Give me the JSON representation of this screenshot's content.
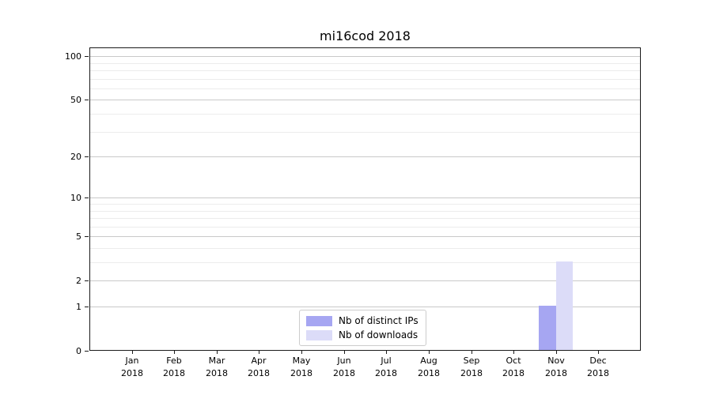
{
  "title": "mi16cod 2018",
  "chart_data": {
    "type": "bar",
    "title": "mi16cod 2018",
    "categories": [
      "Jan",
      "Feb",
      "Mar",
      "Apr",
      "May",
      "Jun",
      "Jul",
      "Aug",
      "Sep",
      "Oct",
      "Nov",
      "Dec"
    ],
    "category_year": "2018",
    "series": [
      {
        "name": "Nb of distinct IPs",
        "color": "#a6a6f2",
        "values": [
          0,
          0,
          0,
          0,
          0,
          0,
          0,
          0,
          0,
          0,
          1,
          0
        ]
      },
      {
        "name": "Nb of downloads",
        "color": "#dcdcf8",
        "values": [
          0,
          0,
          0,
          0,
          0,
          0,
          0,
          0,
          0,
          0,
          3,
          0
        ]
      }
    ],
    "xlabel": "",
    "ylabel": "",
    "y_scale": "log10(1+x)",
    "y_ticks": [
      0,
      1,
      2,
      5,
      10,
      20,
      50,
      100
    ],
    "y_minor_gridlines": [
      3,
      4,
      6,
      7,
      8,
      9,
      30,
      40,
      60,
      70,
      80,
      90
    ],
    "ylim": [
      0,
      115
    ],
    "grid": "horizontal",
    "legend_position": "lower center"
  },
  "colors": {
    "axis": "#1a1a1a",
    "grid_major": "#c9c9c9",
    "grid_minor": "#ececec",
    "background": "#ffffff",
    "legend_border": "#cccccc"
  }
}
